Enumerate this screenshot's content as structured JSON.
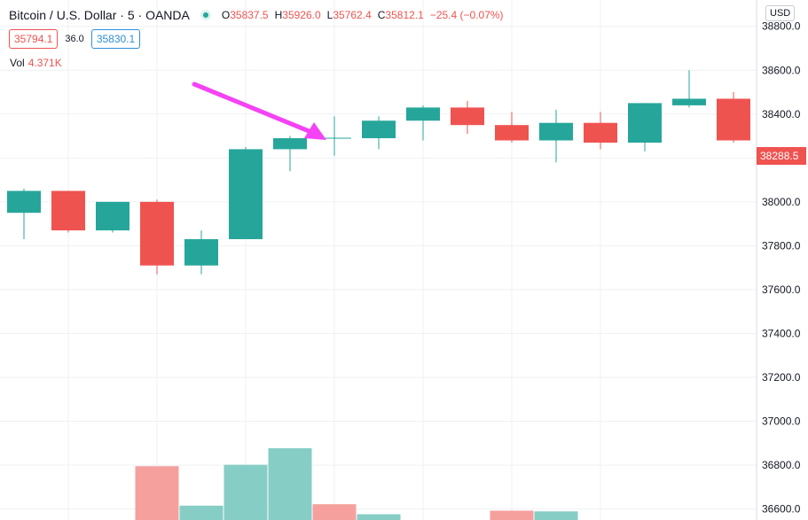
{
  "legend": {
    "symbol": "Bitcoin / U.S. Dollar",
    "interval": "5",
    "exchange": "OANDA",
    "separator": "·",
    "open_key": "O",
    "open": "35837.5",
    "high_key": "H",
    "high": "35926.0",
    "low_key": "L",
    "low": "35762.4",
    "close_key": "C",
    "close": "35812.1",
    "change": "−25.4 (−0.07%)"
  },
  "quote": {
    "bid": "35794.1",
    "spread": "36.0",
    "ask": "35830.1"
  },
  "volume": {
    "label": "Vol",
    "value": "4.371K"
  },
  "currency_button": "USD",
  "last_price": "38288.5",
  "colors": {
    "up": "#26a69a",
    "down": "#ef5350",
    "up_volume": "#86cdc6",
    "down_volume": "#f5a09d",
    "arrow": "#f542f5",
    "grid": "#eef0f3"
  },
  "chart_data": {
    "type": "candlestick",
    "ylim": [
      36550,
      38920
    ],
    "y_ticks": [
      "38800.0",
      "38600.0",
      "38400.0",
      "38200.0",
      "38000.0",
      "37800.0",
      "37600.0",
      "37400.0",
      "37200.0",
      "37000.0",
      "36800.0",
      "36600.0"
    ],
    "candles": [
      {
        "open": 37950,
        "close": 38050,
        "high": 38060,
        "low": 37830
      },
      {
        "open": 38050,
        "close": 37870,
        "high": 38050,
        "low": 37860
      },
      {
        "open": 37870,
        "close": 38000,
        "high": 38000,
        "low": 37860
      },
      {
        "open": 38000,
        "close": 37710,
        "high": 38010,
        "low": 37670
      },
      {
        "open": 37710,
        "close": 37830,
        "high": 37870,
        "low": 37670
      },
      {
        "open": 37830,
        "close": 38240,
        "high": 38250,
        "low": 37830
      },
      {
        "open": 38240,
        "close": 38290,
        "high": 38300,
        "low": 38140
      },
      {
        "open": 38290,
        "close": 38290,
        "high": 38390,
        "low": 38210
      },
      {
        "open": 38290,
        "close": 38370,
        "high": 38390,
        "low": 38240
      },
      {
        "open": 38370,
        "close": 38430,
        "high": 38440,
        "low": 38280
      },
      {
        "open": 38430,
        "close": 38350,
        "high": 38460,
        "low": 38310
      },
      {
        "open": 38350,
        "close": 38280,
        "high": 38410,
        "low": 38270
      },
      {
        "open": 38280,
        "close": 38360,
        "high": 38420,
        "low": 38180
      },
      {
        "open": 38360,
        "close": 38270,
        "high": 38410,
        "low": 38240
      },
      {
        "open": 38270,
        "close": 38450,
        "high": 38450,
        "low": 38230
      },
      {
        "open": 38440,
        "close": 38470,
        "high": 38600,
        "low": 38430
      },
      {
        "open": 38470,
        "close": 38280,
        "high": 38500,
        "low": 38270
      }
    ],
    "volume": {
      "scale_max": 100,
      "bars": [
        {
          "value": 0,
          "up": true
        },
        {
          "value": 0,
          "up": false
        },
        {
          "value": 0,
          "up": true
        },
        {
          "value": 75,
          "up": false
        },
        {
          "value": 20,
          "up": true
        },
        {
          "value": 77,
          "up": true
        },
        {
          "value": 100,
          "up": true
        },
        {
          "value": 22,
          "up": false
        },
        {
          "value": 8,
          "up": true
        },
        {
          "value": 0,
          "up": true
        },
        {
          "value": 0,
          "up": false
        },
        {
          "value": 13,
          "up": false
        },
        {
          "value": 12,
          "up": true
        },
        {
          "value": 0,
          "up": false
        },
        {
          "value": 0,
          "up": true
        },
        {
          "value": 0,
          "up": true
        },
        {
          "value": 0,
          "up": false
        }
      ]
    }
  }
}
